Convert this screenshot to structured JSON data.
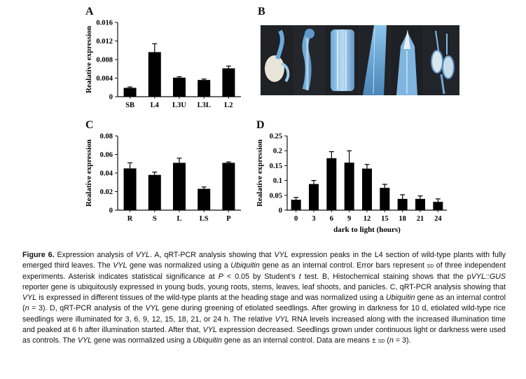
{
  "panels": {
    "A": {
      "letter": "A"
    },
    "B": {
      "letter": "B"
    },
    "C": {
      "letter": "C"
    },
    "D": {
      "letter": "D"
    }
  },
  "chart_data": [
    {
      "id": "A",
      "type": "bar",
      "ylabel": "Realative expression",
      "xlabel": "",
      "categories": [
        "SB",
        "L4",
        "L3U",
        "L3L",
        "L2"
      ],
      "values": [
        0.0019,
        0.0096,
        0.0041,
        0.0036,
        0.0061
      ],
      "errors": [
        0.0002,
        0.0018,
        0.0002,
        0.0002,
        0.0005
      ],
      "ylim": [
        0,
        0.016
      ],
      "yticks": [
        "0",
        "0.004",
        "0.008",
        "0.012",
        "0.016"
      ],
      "ytick_values": [
        0,
        0.004,
        0.008,
        0.012,
        0.016
      ]
    },
    {
      "id": "C",
      "type": "bar",
      "ylabel": "Realative expression",
      "xlabel": "",
      "categories": [
        "R",
        "S",
        "L",
        "LS",
        "P"
      ],
      "values": [
        0.045,
        0.038,
        0.051,
        0.023,
        0.051
      ],
      "errors": [
        0.006,
        0.003,
        0.005,
        0.002,
        0.001
      ],
      "ylim": [
        0,
        0.08
      ],
      "yticks": [
        "0",
        "0.02",
        "0.04",
        "0.06",
        "0.08"
      ],
      "ytick_values": [
        0,
        0.02,
        0.04,
        0.06,
        0.08
      ]
    },
    {
      "id": "D",
      "type": "bar",
      "ylabel": "Realative expression",
      "xlabel": "dark to light (hours)",
      "categories": [
        "0",
        "3",
        "6",
        "9",
        "12",
        "15",
        "18",
        "21",
        "24"
      ],
      "values": [
        0.035,
        0.088,
        0.175,
        0.16,
        0.14,
        0.075,
        0.038,
        0.038,
        0.028
      ],
      "errors": [
        0.008,
        0.012,
        0.022,
        0.04,
        0.014,
        0.012,
        0.014,
        0.01,
        0.01
      ],
      "ylim": [
        0,
        0.25
      ],
      "yticks": [
        "0",
        "0.05",
        "0.1",
        "0.15",
        "0.2",
        "0.25"
      ],
      "ytick_values": [
        0,
        0.05,
        0.1,
        0.15,
        0.2,
        0.25
      ]
    }
  ],
  "photo": {
    "tissues": [
      "young bud",
      "young root",
      "stem",
      "leaf",
      "leaf shoot",
      "panicle"
    ]
  },
  "caption": {
    "label": "Figure 6.",
    "text_before_vyl1": " Expression analysis of ",
    "vyl": "VYL",
    "t1": ". A, qRT-PCR analysis showing that ",
    "t2": " expression peaks in the L4 section of wild-type plants with fully emerged third leaves. The ",
    "t3": " gene was normalized using a ",
    "ubiquitin": "Ubiquitin",
    "t4": " gene as an internal control. Error bars represent ",
    "sd": "sd",
    "t5": " of three independent experiments. Asterisk indicates statistical significance at ",
    "p": "P",
    "t6": " < 0.05 by Student’s ",
    "tt": "t",
    "t7": " test. B, Histochemical staining shows that the p",
    "gus": "VYL::GUS",
    "t8": " reporter gene is ubiquitously expressed in young buds, young roots, stems, leaves, leaf shoots, and panicles. C, qRT-PCR analysis showing that ",
    "t9": " is expressed in different tissues of the wild-type plants at the heading stage and was normalized using a ",
    "t10": " gene as an internal control (",
    "n": "n",
    "t11": " = 3). D, qRT-PCR analysis of the ",
    "t12": " gene during greening of etiolated seedlings. After growing in darkness for 10 d, etiolated wild-type rice seedlings were illuminated for 3, 6, 9, 12, 15, 18, 21, or 24 h. The relative ",
    "t13": " RNA levels increased along with the increased illumination time and peaked at 6 h after illumination started. After that, ",
    "t14": " expression decreased. Seedlings grown under continuous light or darkness were used as controls. The ",
    "t15": " gene was normalized using a ",
    "t16": " gene as an internal control. Data are means ± ",
    "t17": " (",
    "t18": " = 3)."
  }
}
